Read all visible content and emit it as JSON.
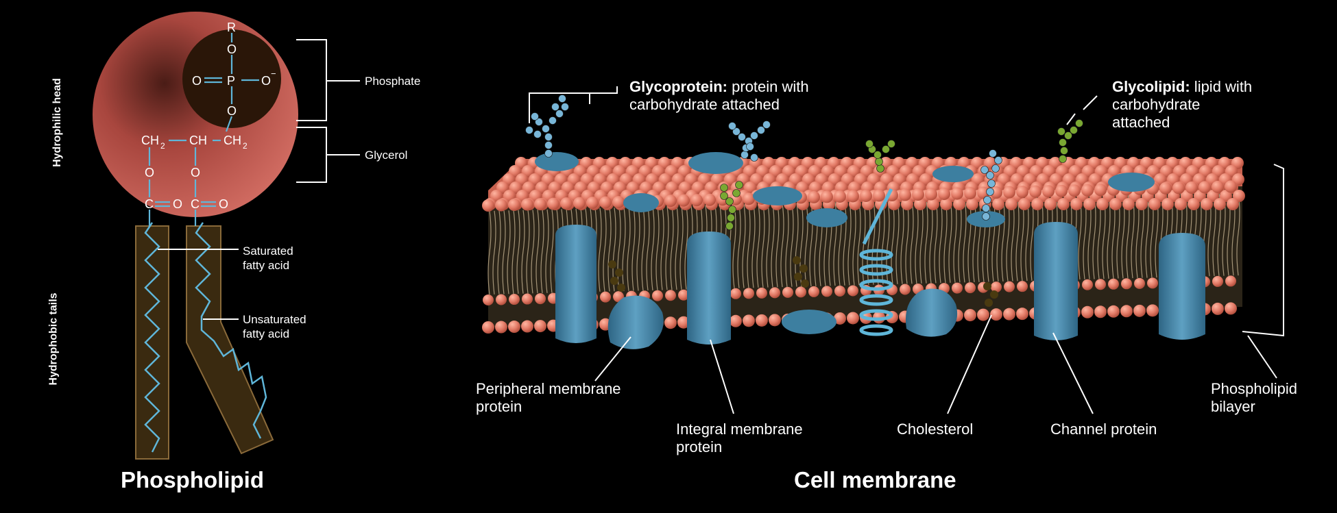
{
  "phospholipid": {
    "title": "Phospholipid",
    "hydrophilic_head": "Hydrophilic head",
    "hydrophobic_tails": "Hydrophobic tails",
    "phosphate": "Phosphate",
    "glycerol": "Glycerol",
    "saturated_line1": "Saturated",
    "saturated_line2": "fatty acid",
    "unsaturated_line1": "Unsaturated",
    "unsaturated_line2": "fatty acid",
    "chem": {
      "r": "R",
      "o": "O",
      "p": "P",
      "o_minus": "O",
      "minus": "−",
      "ch": "CH",
      "sub2": "2",
      "c": "C"
    },
    "colors": {
      "head": "#c8615a",
      "phosphate_disc": "#2a1608",
      "tail_fill": "#3a2a10",
      "tail_border": "#8a6a3a",
      "bond": "#5fb6d9"
    }
  },
  "membrane": {
    "title": "Cell membrane",
    "glycoprotein_bold": "Glycoprotein:",
    "glycoprotein_rest": " protein with",
    "glycoprotein_line2": "carbohydrate attached",
    "glycolipid_bold": "Glycolipid:",
    "glycolipid_rest": " lipid with",
    "glycolipid_line2": "carbohydrate",
    "glycolipid_line3": "attached",
    "peripheral_line1": "Peripheral membrane",
    "peripheral_line2": "protein",
    "integral_line1": "Integral membrane",
    "integral_line2": "protein",
    "cholesterol": "Cholesterol",
    "channel": "Channel protein",
    "bilayer_line1": "Phospholipid",
    "bilayer_line2": "bilayer",
    "colors": {
      "head": "#e07a66",
      "protein": "#3d7fa0",
      "carb_blue": "#78b6d8",
      "carb_green": "#7aa832",
      "cholesterol": "#4a3a10"
    }
  }
}
